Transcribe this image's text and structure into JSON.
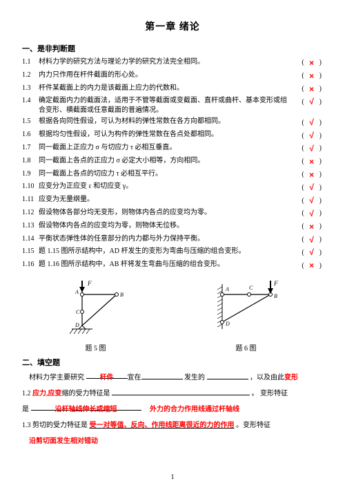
{
  "chapter_title": "第一章  绪论",
  "section1_title": "一、是非判断题",
  "section2_title": "二、填空题",
  "page_number": "1",
  "tf": [
    {
      "num": "1.1",
      "text": "材料力学的研究方法与理论力学的研究方法完全相同。",
      "mark": "×"
    },
    {
      "num": "1.2",
      "text": "内力只作用在杆件截面的形心处。",
      "mark": "×"
    },
    {
      "num": "1.3",
      "text": "杆件某截面上的内力是该截面上应力的代数和。",
      "mark": "×"
    },
    {
      "num": "1.4",
      "text": "确定截面内力的截面法，适用于不管等截面或变截面、直杆或曲杆、基本变形或组合变形、横截面或任意截面的普遍情况。",
      "mark": "√"
    },
    {
      "num": "1.5",
      "text": "根据各向同性假设，可认为材料的弹性常数在各方向都相同。",
      "mark": "√"
    },
    {
      "num": "1.6",
      "text": "根据均匀性假设，可认为构件的弹性常数在各点处都相同。",
      "mark": "√"
    },
    {
      "num": "1.7",
      "text": "同一截面上正应力 σ 与切应力 τ 必相互垂直。",
      "mark": "√"
    },
    {
      "num": "1.8",
      "text": "同一截面上各点的正应力 σ 必定大小相等，方向相同。",
      "mark": "×"
    },
    {
      "num": "1.9",
      "text": "同一截面上各点的切应力 τ 必相互平行。",
      "mark": "×"
    },
    {
      "num": "1.10",
      "text": "应变分为正应变 ε 和切应变 γ。",
      "mark": "√"
    },
    {
      "num": "1.11",
      "text": "应变为无量纲量。",
      "mark": "√"
    },
    {
      "num": "1.12",
      "text": "假设物体各部分均无变形，则物体内各点的应变均为零。",
      "mark": "√"
    },
    {
      "num": "1.13",
      "text": "假设物体内各点的应变均为零，则物体无位移。",
      "mark": "×"
    },
    {
      "num": "1.14",
      "text": "平衡状态弹性体的任意部分的内力都与外力保持平衡。",
      "mark": "√"
    },
    {
      "num": "1.15",
      "text": "题 1.15 图所示结构中，AD 杆发生的变形为弯曲与压缩的组合变形。",
      "mark": "√"
    },
    {
      "num": "1.16",
      "text": "题 1.16 图所示结构中，AB 杆将发生弯曲与压缩的组合变形。",
      "mark": "×"
    }
  ],
  "fig5_label": "题 5 图",
  "fig6_label": "题 6 图",
  "fig_labels": {
    "A": "A",
    "B": "B",
    "C": "C",
    "D": "D",
    "F": "F"
  },
  "fill": {
    "t1_lead": "材料力学主要研究",
    "t1_lead2": "宜在",
    "t1_ans1": "杆件",
    "t1_mid": "发生的 ",
    "t1_mid2": "，以及由此",
    "t1_ans2": "变形",
    "num12": "1.2",
    "t2_ans1": "应力,应变",
    "t2_mid": "缩的受力特征是 ",
    "t2_tail": "。  变形特征",
    "t2_lead2": "是",
    "t2_ans2": "沿杆轴线伸长或缩短",
    "t2_ans3": "外力的合力作用线通过杆轴线",
    "num13": "1.3",
    "t3_lead": "剪切的受力特征是 ",
    "t3_ans1": "受一对等值、反向、作用线距离很近的力的作用",
    "t3_tail": "。变形特征",
    "t3_ans2": "沿剪切面发生相对错动"
  },
  "colors": {
    "answer": "#ff0000",
    "text": "#000000"
  }
}
